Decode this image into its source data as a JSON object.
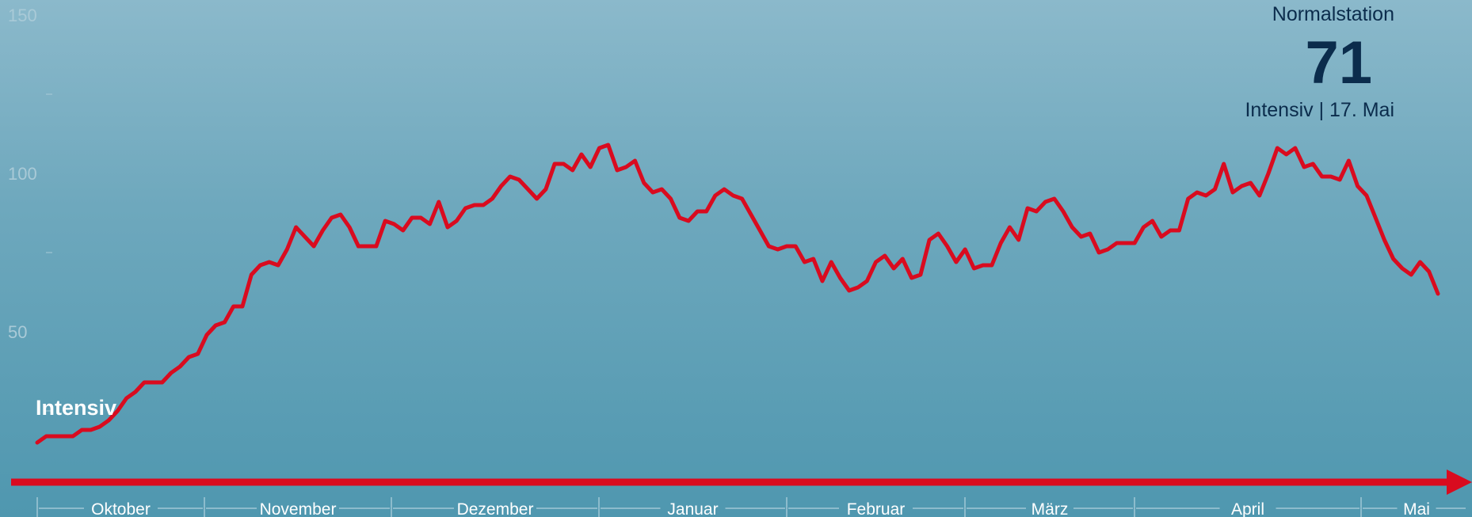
{
  "panel": {
    "title": "Normalstation",
    "value": "71",
    "subtitle": "Intensiv | 17. Mai"
  },
  "colors": {
    "line": "#d90b1f",
    "axis_arrow": "#d90b1f",
    "panel_text": "#0b2c4c",
    "tick_text": "#a9cad7"
  },
  "chart_data": {
    "type": "line",
    "series": [
      {
        "name": "Intensiv",
        "values": [
          15,
          17,
          17,
          17,
          17,
          19,
          19,
          20,
          22,
          25,
          29,
          31,
          34,
          34,
          34,
          37,
          39,
          42,
          43,
          49,
          52,
          53,
          58,
          58,
          68,
          71,
          72,
          71,
          76,
          83,
          80,
          77,
          82,
          86,
          87,
          83,
          77,
          77,
          77,
          85,
          84,
          82,
          86,
          86,
          84,
          91,
          83,
          85,
          89,
          90,
          90,
          92,
          96,
          99,
          98,
          95,
          92,
          95,
          103,
          103,
          101,
          106,
          102,
          108,
          109,
          101,
          102,
          104,
          97,
          94,
          95,
          92,
          86,
          85,
          88,
          88,
          93,
          95,
          93,
          92,
          87,
          82,
          77,
          76,
          77,
          77,
          72,
          73,
          66,
          72,
          67,
          63,
          64,
          66,
          72,
          74,
          70,
          73,
          67,
          68,
          79,
          81,
          77,
          72,
          76,
          70,
          71,
          71,
          78,
          83,
          79,
          89,
          88,
          91,
          92,
          88,
          83,
          80,
          81,
          75,
          76,
          78,
          78,
          78,
          83,
          85,
          80,
          82,
          82,
          92,
          94,
          93,
          95,
          103,
          94,
          96,
          97,
          93,
          100,
          108,
          106,
          108,
          102,
          103,
          99,
          99,
          98,
          104,
          96,
          93,
          86,
          79,
          73,
          70,
          68,
          72,
          69,
          62
        ],
        "date_range": [
          "2020-10-01",
          "2021-05-17"
        ]
      }
    ],
    "series_label": "Intensiv",
    "ylim": [
      0,
      150
    ],
    "y_ticks": [
      "50",
      "100",
      "150"
    ],
    "x_labels": [
      "Oktober",
      "November",
      "Dezember",
      "Januar",
      "Februar",
      "März",
      "April",
      "Mai"
    ],
    "grid": false
  }
}
